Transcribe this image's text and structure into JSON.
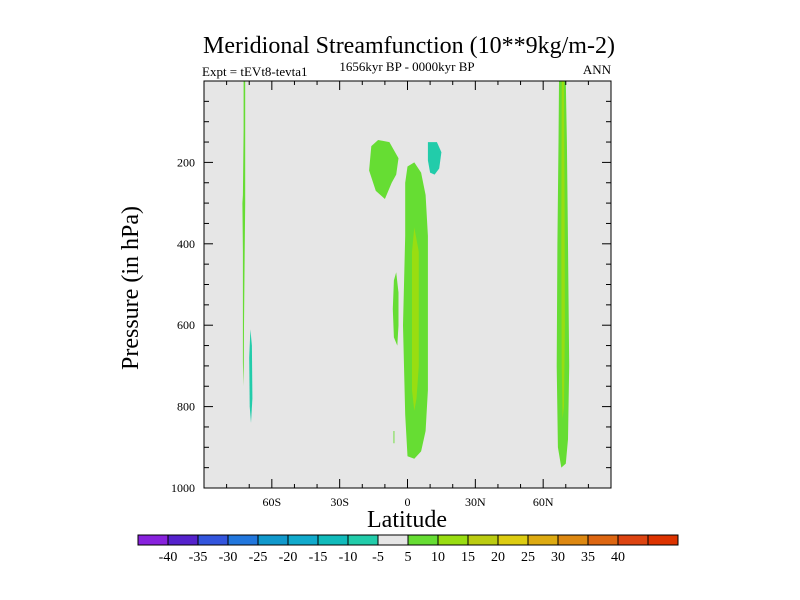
{
  "chart_data": {
    "type": "contour",
    "title": "Meridional Streamfunction (10**9kg/m-2)",
    "left_string": "Expt = tEVt8-tevta1",
    "center_string": "1656kyr BP - 0000kyr BP",
    "right_string": "ANN",
    "xlabel": "Latitude",
    "ylabel": "Pressure (in hPa)",
    "xlim": [
      -90,
      90
    ],
    "ylim": [
      1000,
      0
    ],
    "x_ticks": [
      {
        "value": -60,
        "label": "60S"
      },
      {
        "value": -30,
        "label": "30S"
      },
      {
        "value": 0,
        "label": "0"
      },
      {
        "value": 30,
        "label": "30N"
      },
      {
        "value": 60,
        "label": "60N"
      }
    ],
    "y_ticks": [
      {
        "value": 200,
        "label": "200"
      },
      {
        "value": 400,
        "label": "400"
      },
      {
        "value": 600,
        "label": "600"
      },
      {
        "value": 800,
        "label": "800"
      },
      {
        "value": 1000,
        "label": "1000"
      }
    ],
    "background_color": "#e6e6e6",
    "regions": [
      {
        "name": "sh-polar-column",
        "level": 5,
        "color": "#66dd33",
        "points": [
          [
            -72.5,
            0
          ],
          [
            -71.8,
            0
          ],
          [
            -71.8,
            300
          ],
          [
            -72,
            420
          ],
          [
            -72.3,
            600
          ],
          [
            -72.4,
            700
          ],
          [
            -72.6,
            750
          ],
          [
            -72.8,
            690
          ],
          [
            -72.8,
            420
          ],
          [
            -73,
            300
          ],
          [
            -72.8,
            280
          ],
          [
            -72.5,
            120
          ]
        ]
      },
      {
        "name": "sh-polar-negative",
        "level": -5,
        "color": "#22ccaa",
        "points": [
          [
            -69.5,
            610
          ],
          [
            -68.8,
            650
          ],
          [
            -68.6,
            780
          ],
          [
            -69.2,
            840
          ],
          [
            -69.8,
            800
          ],
          [
            -70,
            680
          ]
        ]
      },
      {
        "name": "tropical-upper-left",
        "level": 5,
        "color": "#66dd33",
        "points": [
          [
            -17,
            220
          ],
          [
            -16,
            160
          ],
          [
            -13,
            145
          ],
          [
            -8,
            150
          ],
          [
            -4,
            190
          ],
          [
            -5,
            230
          ],
          [
            -7,
            250
          ],
          [
            -10,
            290
          ],
          [
            -14,
            270
          ]
        ]
      },
      {
        "name": "tropical-negative-cell",
        "level": -5,
        "color": "#22ccaa",
        "points": [
          [
            9,
            150
          ],
          [
            13,
            150
          ],
          [
            15,
            175
          ],
          [
            14,
            215
          ],
          [
            12,
            230
          ],
          [
            10,
            225
          ],
          [
            9,
            195
          ]
        ]
      },
      {
        "name": "tropical-main-cell",
        "level": 5,
        "color": "#66dd33",
        "points": [
          [
            0,
            210
          ],
          [
            3,
            200
          ],
          [
            6,
            225
          ],
          [
            8,
            280
          ],
          [
            9,
            380
          ],
          [
            9,
            560
          ],
          [
            9,
            760
          ],
          [
            8,
            860
          ],
          [
            6,
            910
          ],
          [
            3,
            928
          ],
          [
            0,
            922
          ],
          [
            -1,
            820
          ],
          [
            -2,
            600
          ],
          [
            -1,
            380
          ],
          [
            -1,
            250
          ]
        ]
      },
      {
        "name": "tropical-lower-left",
        "level": 5,
        "color": "#66dd33",
        "points": [
          [
            -6,
            490
          ],
          [
            -5,
            470
          ],
          [
            -4,
            520
          ],
          [
            -4,
            600
          ],
          [
            -4.5,
            650
          ],
          [
            -6,
            630
          ],
          [
            -6.5,
            560
          ]
        ]
      },
      {
        "name": "tropical-small-blob",
        "level": 5,
        "color": "#66dd33",
        "points": [
          [
            -6.2,
            860
          ],
          [
            -5.8,
            860
          ],
          [
            -5.8,
            890
          ],
          [
            -6.2,
            890
          ]
        ]
      },
      {
        "name": "tropical-core",
        "level": 10,
        "color": "#99dd11",
        "points": [
          [
            3,
            360
          ],
          [
            5,
            420
          ],
          [
            5,
            550
          ],
          [
            5,
            700
          ],
          [
            4,
            780
          ],
          [
            3,
            810
          ],
          [
            2,
            760
          ],
          [
            2,
            560
          ],
          [
            2,
            420
          ]
        ]
      },
      {
        "name": "nh-polar-column",
        "level": 5,
        "color": "#66dd33",
        "points": [
          [
            67,
            0
          ],
          [
            70,
            0
          ],
          [
            70.5,
            150
          ],
          [
            71,
            400
          ],
          [
            71.5,
            700
          ],
          [
            71,
            880
          ],
          [
            70,
            940
          ],
          [
            68,
            950
          ],
          [
            66.5,
            900
          ],
          [
            66,
            700
          ],
          [
            66.3,
            400
          ],
          [
            66.8,
            150
          ]
        ]
      },
      {
        "name": "nh-polar-core",
        "level": 10,
        "color": "#99dd11",
        "points": [
          [
            68.2,
            0
          ],
          [
            69.2,
            0
          ],
          [
            69.5,
            300
          ],
          [
            69.6,
            600
          ],
          [
            69.2,
            800
          ],
          [
            68.6,
            830
          ],
          [
            68.2,
            700
          ],
          [
            68,
            400
          ]
        ]
      }
    ],
    "colorbar": {
      "colors": [
        "#8822dd",
        "#5522cc",
        "#3355dd",
        "#2277dd",
        "#1199cc",
        "#11aacc",
        "#11bbbb",
        "#22ccaa",
        "#e6e6e6",
        "#66dd33",
        "#99dd11",
        "#bbcc11",
        "#ddcc11",
        "#ddaa11",
        "#dd8811",
        "#dd6611",
        "#dd4411",
        "#dd3300"
      ],
      "labels": [
        "-40",
        "-35",
        "-30",
        "-25",
        "-20",
        "-15",
        "-10",
        "-5",
        "5",
        "10",
        "15",
        "20",
        "25",
        "30",
        "35",
        "40"
      ]
    }
  }
}
